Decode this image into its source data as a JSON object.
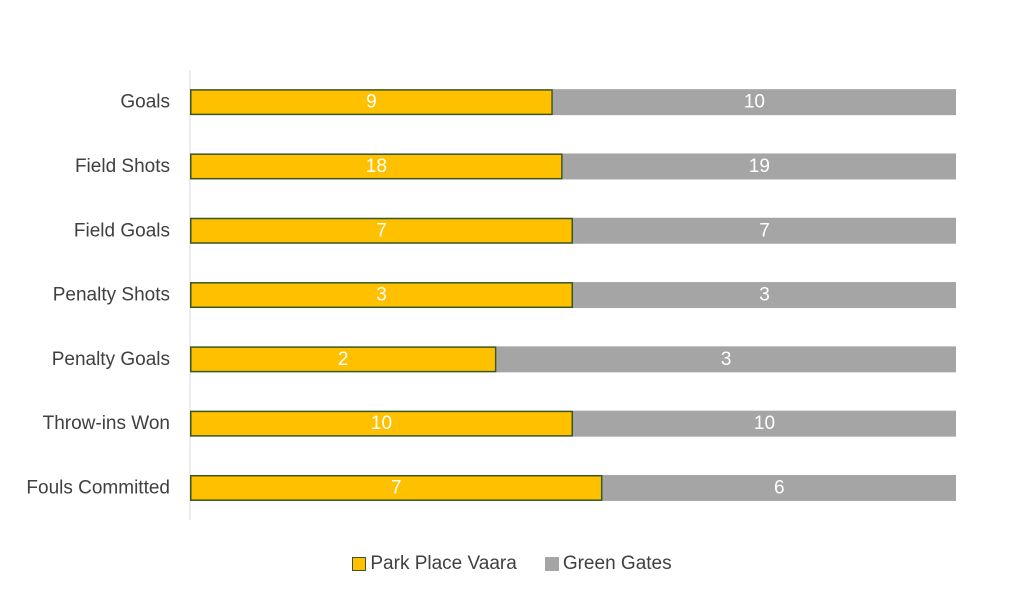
{
  "chart_data": {
    "type": "bar",
    "orientation": "horizontal",
    "stacked": "percent",
    "categories": [
      "Goals",
      "Field Shots",
      "Field Goals",
      "Penalty Shots",
      "Penalty Goals",
      "Throw-ins Won",
      "Fouls Committed"
    ],
    "series": [
      {
        "name": "Park Place Vaara",
        "values": [
          9,
          18,
          7,
          3,
          2,
          10,
          7
        ],
        "color": "#FFC000",
        "border": "#375623"
      },
      {
        "name": "Green Gates",
        "values": [
          10,
          19,
          7,
          3,
          3,
          10,
          6
        ],
        "color": "#A5A5A5"
      }
    ],
    "title": "",
    "xlabel": "",
    "ylabel": "",
    "xlim": [
      0,
      100
    ],
    "grid": false,
    "legend_position": "bottom",
    "data_labels": true
  }
}
